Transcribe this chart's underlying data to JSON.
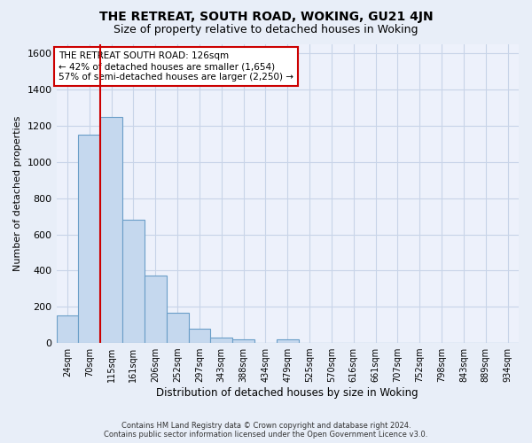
{
  "title": "THE RETREAT, SOUTH ROAD, WOKING, GU21 4JN",
  "subtitle": "Size of property relative to detached houses in Woking",
  "xlabel": "Distribution of detached houses by size in Woking",
  "ylabel": "Number of detached properties",
  "footer_line1": "Contains HM Land Registry data © Crown copyright and database right 2024.",
  "footer_line2": "Contains public sector information licensed under the Open Government Licence v3.0.",
  "categories": [
    "24sqm",
    "70sqm",
    "115sqm",
    "161sqm",
    "206sqm",
    "252sqm",
    "297sqm",
    "343sqm",
    "388sqm",
    "434sqm",
    "479sqm",
    "525sqm",
    "570sqm",
    "616sqm",
    "661sqm",
    "707sqm",
    "752sqm",
    "798sqm",
    "843sqm",
    "889sqm",
    "934sqm"
  ],
  "values": [
    150,
    1150,
    1250,
    680,
    370,
    165,
    80,
    30,
    20,
    0,
    20,
    0,
    0,
    0,
    0,
    0,
    0,
    0,
    0,
    0,
    0
  ],
  "bar_color": "#c5d8ee",
  "bar_edge_color": "#6a9ec8",
  "vline_x": 1.5,
  "vline_color": "#cc0000",
  "annotation_text": "THE RETREAT SOUTH ROAD: 126sqm\n← 42% of detached houses are smaller (1,654)\n57% of semi-detached houses are larger (2,250) →",
  "annotation_box_color": "#ffffff",
  "annotation_border_color": "#cc0000",
  "ylim": [
    0,
    1650
  ],
  "yticks": [
    0,
    200,
    400,
    600,
    800,
    1000,
    1200,
    1400,
    1600
  ],
  "bg_color": "#e8eef8",
  "grid_color": "#c8d4e8",
  "title_fontsize": 10,
  "subtitle_fontsize": 9,
  "xlabel_fontsize": 8.5,
  "ylabel_fontsize": 8
}
